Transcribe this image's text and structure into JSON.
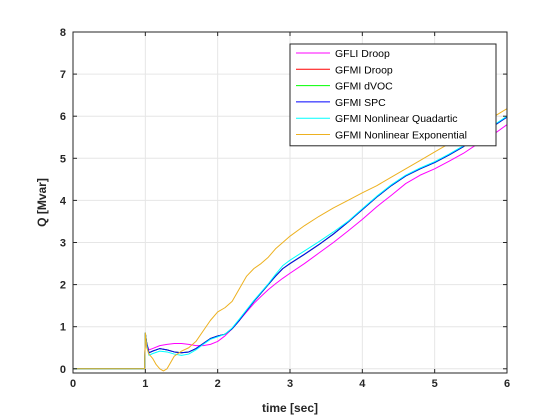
{
  "chart_data": {
    "type": "line",
    "title": "",
    "xlabel": "time [sec]",
    "ylabel": "Q [Mvar]",
    "xlim": [
      0,
      6
    ],
    "ylim": [
      -0.1,
      8
    ],
    "xticks": [
      0,
      1,
      2,
      3,
      4,
      5,
      6
    ],
    "yticks": [
      0,
      1,
      2,
      3,
      4,
      5,
      6,
      7,
      8
    ],
    "grid": true,
    "legend_position": "top-right",
    "series": [
      {
        "name": "GFLI Droop",
        "color": "#ff00ff",
        "x": [
          0,
          0.99,
          1.0,
          1.02,
          1.05,
          1.1,
          1.2,
          1.3,
          1.4,
          1.5,
          1.6,
          1.7,
          1.8,
          1.9,
          2.0,
          2.1,
          2.2,
          2.3,
          2.4,
          2.5,
          2.6,
          2.7,
          2.8,
          2.9,
          3.0,
          3.2,
          3.4,
          3.6,
          3.8,
          4.0,
          4.2,
          4.4,
          4.6,
          4.8,
          5.0,
          5.2,
          5.4,
          5.6,
          5.8,
          6.0
        ],
        "y": [
          0,
          0,
          0.85,
          0.6,
          0.45,
          0.48,
          0.55,
          0.58,
          0.6,
          0.6,
          0.58,
          0.55,
          0.55,
          0.58,
          0.65,
          0.78,
          0.95,
          1.15,
          1.35,
          1.55,
          1.72,
          1.88,
          2.02,
          2.15,
          2.27,
          2.5,
          2.75,
          3.0,
          3.27,
          3.55,
          3.85,
          4.12,
          4.4,
          4.6,
          4.75,
          4.93,
          5.12,
          5.35,
          5.55,
          5.8
        ]
      },
      {
        "name": "GFMI Droop",
        "color": "#ff0000",
        "x": [
          0,
          0.99,
          1.0,
          1.02,
          1.05,
          1.1,
          1.2,
          1.3,
          1.4,
          1.5,
          1.6,
          1.7,
          1.8,
          1.9,
          2.0,
          2.1,
          2.2,
          2.3,
          2.4,
          2.5,
          2.6,
          2.7,
          2.8,
          2.9,
          3.0,
          3.2,
          3.4,
          3.6,
          3.8,
          4.0,
          4.2,
          4.4,
          4.6,
          4.8,
          5.0,
          5.2,
          5.4,
          5.6,
          5.8,
          6.0
        ],
        "y": [
          0,
          0,
          0.85,
          0.6,
          0.38,
          0.42,
          0.48,
          0.45,
          0.4,
          0.38,
          0.4,
          0.48,
          0.6,
          0.72,
          0.78,
          0.82,
          0.95,
          1.15,
          1.38,
          1.6,
          1.8,
          2.0,
          2.2,
          2.38,
          2.5,
          2.72,
          2.95,
          3.2,
          3.48,
          3.78,
          4.08,
          4.35,
          4.58,
          4.75,
          4.9,
          5.08,
          5.28,
          5.5,
          5.75,
          5.98
        ]
      },
      {
        "name": "GFMI dVOC",
        "color": "#00ff00",
        "x": [
          0,
          0.99,
          1.0,
          1.02,
          1.05,
          1.1,
          1.2,
          1.3,
          1.4,
          1.5,
          1.6,
          1.7,
          1.8,
          1.9,
          2.0,
          2.1,
          2.2,
          2.3,
          2.4,
          2.5,
          2.6,
          2.7,
          2.8,
          2.9,
          3.0,
          3.2,
          3.4,
          3.6,
          3.8,
          4.0,
          4.2,
          4.4,
          4.6,
          4.8,
          5.0,
          5.2,
          5.4,
          5.6,
          5.8,
          6.0
        ],
        "y": [
          0,
          0,
          0.85,
          0.6,
          0.38,
          0.42,
          0.48,
          0.45,
          0.4,
          0.38,
          0.4,
          0.48,
          0.6,
          0.72,
          0.78,
          0.82,
          0.95,
          1.15,
          1.38,
          1.6,
          1.8,
          2.0,
          2.2,
          2.38,
          2.5,
          2.72,
          2.95,
          3.2,
          3.48,
          3.78,
          4.08,
          4.35,
          4.58,
          4.75,
          4.9,
          5.08,
          5.28,
          5.5,
          5.75,
          5.98
        ]
      },
      {
        "name": "GFMI SPC",
        "color": "#0000ff",
        "x": [
          0,
          0.99,
          1.0,
          1.02,
          1.05,
          1.1,
          1.2,
          1.3,
          1.4,
          1.5,
          1.6,
          1.7,
          1.8,
          1.9,
          2.0,
          2.1,
          2.2,
          2.3,
          2.4,
          2.5,
          2.6,
          2.7,
          2.8,
          2.9,
          3.0,
          3.2,
          3.4,
          3.6,
          3.8,
          4.0,
          4.2,
          4.4,
          4.6,
          4.8,
          5.0,
          5.2,
          5.4,
          5.6,
          5.8,
          6.0
        ],
        "y": [
          0,
          0,
          0.85,
          0.6,
          0.38,
          0.42,
          0.48,
          0.45,
          0.4,
          0.38,
          0.4,
          0.48,
          0.6,
          0.72,
          0.78,
          0.82,
          0.95,
          1.15,
          1.38,
          1.6,
          1.8,
          2.0,
          2.2,
          2.38,
          2.5,
          2.72,
          2.95,
          3.2,
          3.48,
          3.78,
          4.08,
          4.35,
          4.58,
          4.75,
          4.9,
          5.08,
          5.28,
          5.5,
          5.75,
          5.98
        ]
      },
      {
        "name": "GFMI Nonlinear Quadartic",
        "color": "#00ffff",
        "x": [
          0,
          0.99,
          1.0,
          1.02,
          1.05,
          1.1,
          1.2,
          1.3,
          1.4,
          1.5,
          1.6,
          1.7,
          1.8,
          1.9,
          2.0,
          2.1,
          2.2,
          2.3,
          2.4,
          2.5,
          2.6,
          2.7,
          2.8,
          2.9,
          3.0,
          3.2,
          3.4,
          3.6,
          3.8,
          4.0,
          4.2,
          4.4,
          4.6,
          4.8,
          5.0,
          5.2,
          5.4,
          5.6,
          5.8,
          6.0
        ],
        "y": [
          0,
          0,
          0.85,
          0.55,
          0.32,
          0.36,
          0.42,
          0.4,
          0.35,
          0.32,
          0.35,
          0.45,
          0.58,
          0.7,
          0.76,
          0.82,
          0.97,
          1.18,
          1.4,
          1.62,
          1.82,
          2.02,
          2.24,
          2.45,
          2.58,
          2.8,
          3.02,
          3.25,
          3.5,
          3.8,
          4.1,
          4.37,
          4.6,
          4.77,
          4.92,
          5.1,
          5.3,
          5.52,
          5.77,
          6.0
        ]
      },
      {
        "name": "GFMI Nonlinear Exponential",
        "color": "#edb120",
        "x": [
          0,
          0.99,
          1.0,
          1.02,
          1.05,
          1.1,
          1.15,
          1.2,
          1.25,
          1.3,
          1.35,
          1.4,
          1.5,
          1.6,
          1.7,
          1.8,
          1.9,
          2.0,
          2.1,
          2.2,
          2.3,
          2.4,
          2.5,
          2.6,
          2.7,
          2.8,
          2.9,
          3.0,
          3.2,
          3.4,
          3.6,
          3.8,
          4.0,
          4.2,
          4.4,
          4.6,
          4.8,
          5.0,
          5.2,
          5.4,
          5.6,
          5.8,
          6.0
        ],
        "y": [
          0,
          0,
          0.85,
          0.5,
          0.35,
          0.25,
          0.1,
          0.0,
          -0.05,
          0.0,
          0.15,
          0.3,
          0.42,
          0.5,
          0.65,
          0.9,
          1.15,
          1.35,
          1.45,
          1.6,
          1.9,
          2.2,
          2.38,
          2.5,
          2.65,
          2.85,
          3.0,
          3.15,
          3.4,
          3.62,
          3.82,
          4.0,
          4.18,
          4.35,
          4.55,
          4.75,
          4.95,
          5.15,
          5.35,
          5.55,
          5.75,
          5.97,
          6.18
        ]
      }
    ]
  }
}
